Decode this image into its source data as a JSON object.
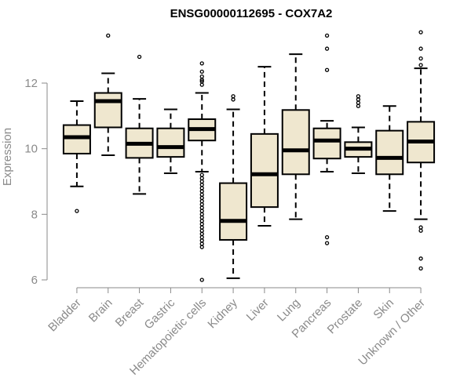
{
  "chart_data": {
    "type": "box",
    "title": "ENSG00000112695 - COX7A2",
    "xlabel": "",
    "ylabel": "Expression",
    "ylim": [
      6,
      13.5
    ],
    "yticks": [
      6,
      8,
      10,
      12
    ],
    "colors": {
      "box_fill": "#efe7cf",
      "box_stroke": "#000000",
      "axis": "#8a8a8a"
    },
    "categories": [
      "Bladder",
      "Brain",
      "Breast",
      "Gastric",
      "Hematopoietic cells",
      "Kidney",
      "Liver",
      "Lung",
      "Pancreas",
      "Prostate",
      "Skin",
      "Unknown / Other"
    ],
    "boxes": [
      {
        "category": "Bladder",
        "q1": 9.85,
        "median": 10.35,
        "q3": 10.72,
        "whisker_low": 8.85,
        "whisker_high": 11.45,
        "outliers": [
          8.1
        ]
      },
      {
        "category": "Brain",
        "q1": 10.65,
        "median": 11.45,
        "q3": 11.7,
        "whisker_low": 9.8,
        "whisker_high": 12.3,
        "outliers": [
          13.45
        ]
      },
      {
        "category": "Breast",
        "q1": 9.72,
        "median": 10.15,
        "q3": 10.62,
        "whisker_low": 8.62,
        "whisker_high": 11.52,
        "outliers": [
          12.8
        ]
      },
      {
        "category": "Gastric",
        "q1": 9.75,
        "median": 10.05,
        "q3": 10.62,
        "whisker_low": 9.25,
        "whisker_high": 11.2,
        "outliers": []
      },
      {
        "category": "Hematopoietic cells",
        "q1": 10.25,
        "median": 10.6,
        "q3": 10.9,
        "whisker_low": 9.3,
        "whisker_high": 11.7,
        "outliers": [
          12.6,
          12.35,
          12.2,
          12.1,
          12.05,
          11.95,
          9.2,
          9.1,
          9.0,
          8.9,
          8.8,
          8.7,
          8.6,
          8.5,
          8.4,
          8.3,
          8.2,
          8.1,
          8.0,
          7.9,
          7.8,
          7.7,
          7.6,
          7.5,
          7.4,
          7.3,
          7.2,
          7.1,
          7.0,
          6.0
        ]
      },
      {
        "category": "Kidney",
        "q1": 7.22,
        "median": 7.8,
        "q3": 8.95,
        "whisker_low": 6.05,
        "whisker_high": 11.2,
        "outliers": [
          11.6,
          11.5
        ]
      },
      {
        "category": "Liver",
        "q1": 8.22,
        "median": 9.22,
        "q3": 10.45,
        "whisker_low": 7.65,
        "whisker_high": 12.5,
        "outliers": []
      },
      {
        "category": "Lung",
        "q1": 9.22,
        "median": 9.95,
        "q3": 11.18,
        "whisker_low": 7.85,
        "whisker_high": 12.88,
        "outliers": []
      },
      {
        "category": "Pancreas",
        "q1": 9.7,
        "median": 10.25,
        "q3": 10.62,
        "whisker_low": 9.3,
        "whisker_high": 10.85,
        "outliers": [
          13.45,
          13.05,
          12.4,
          7.3,
          7.12
        ]
      },
      {
        "category": "Prostate",
        "q1": 9.75,
        "median": 10.0,
        "q3": 10.2,
        "whisker_low": 9.25,
        "whisker_high": 10.65,
        "outliers": [
          11.6,
          11.5,
          11.4,
          11.3
        ]
      },
      {
        "category": "Skin",
        "q1": 9.22,
        "median": 9.72,
        "q3": 10.55,
        "whisker_low": 8.1,
        "whisker_high": 11.3,
        "outliers": []
      },
      {
        "category": "Unknown / Other",
        "q1": 9.58,
        "median": 10.22,
        "q3": 10.82,
        "whisker_low": 7.85,
        "whisker_high": 12.45,
        "outliers": [
          13.55,
          13.05,
          12.75,
          12.55,
          7.6,
          7.5,
          6.65,
          6.35
        ]
      }
    ]
  }
}
